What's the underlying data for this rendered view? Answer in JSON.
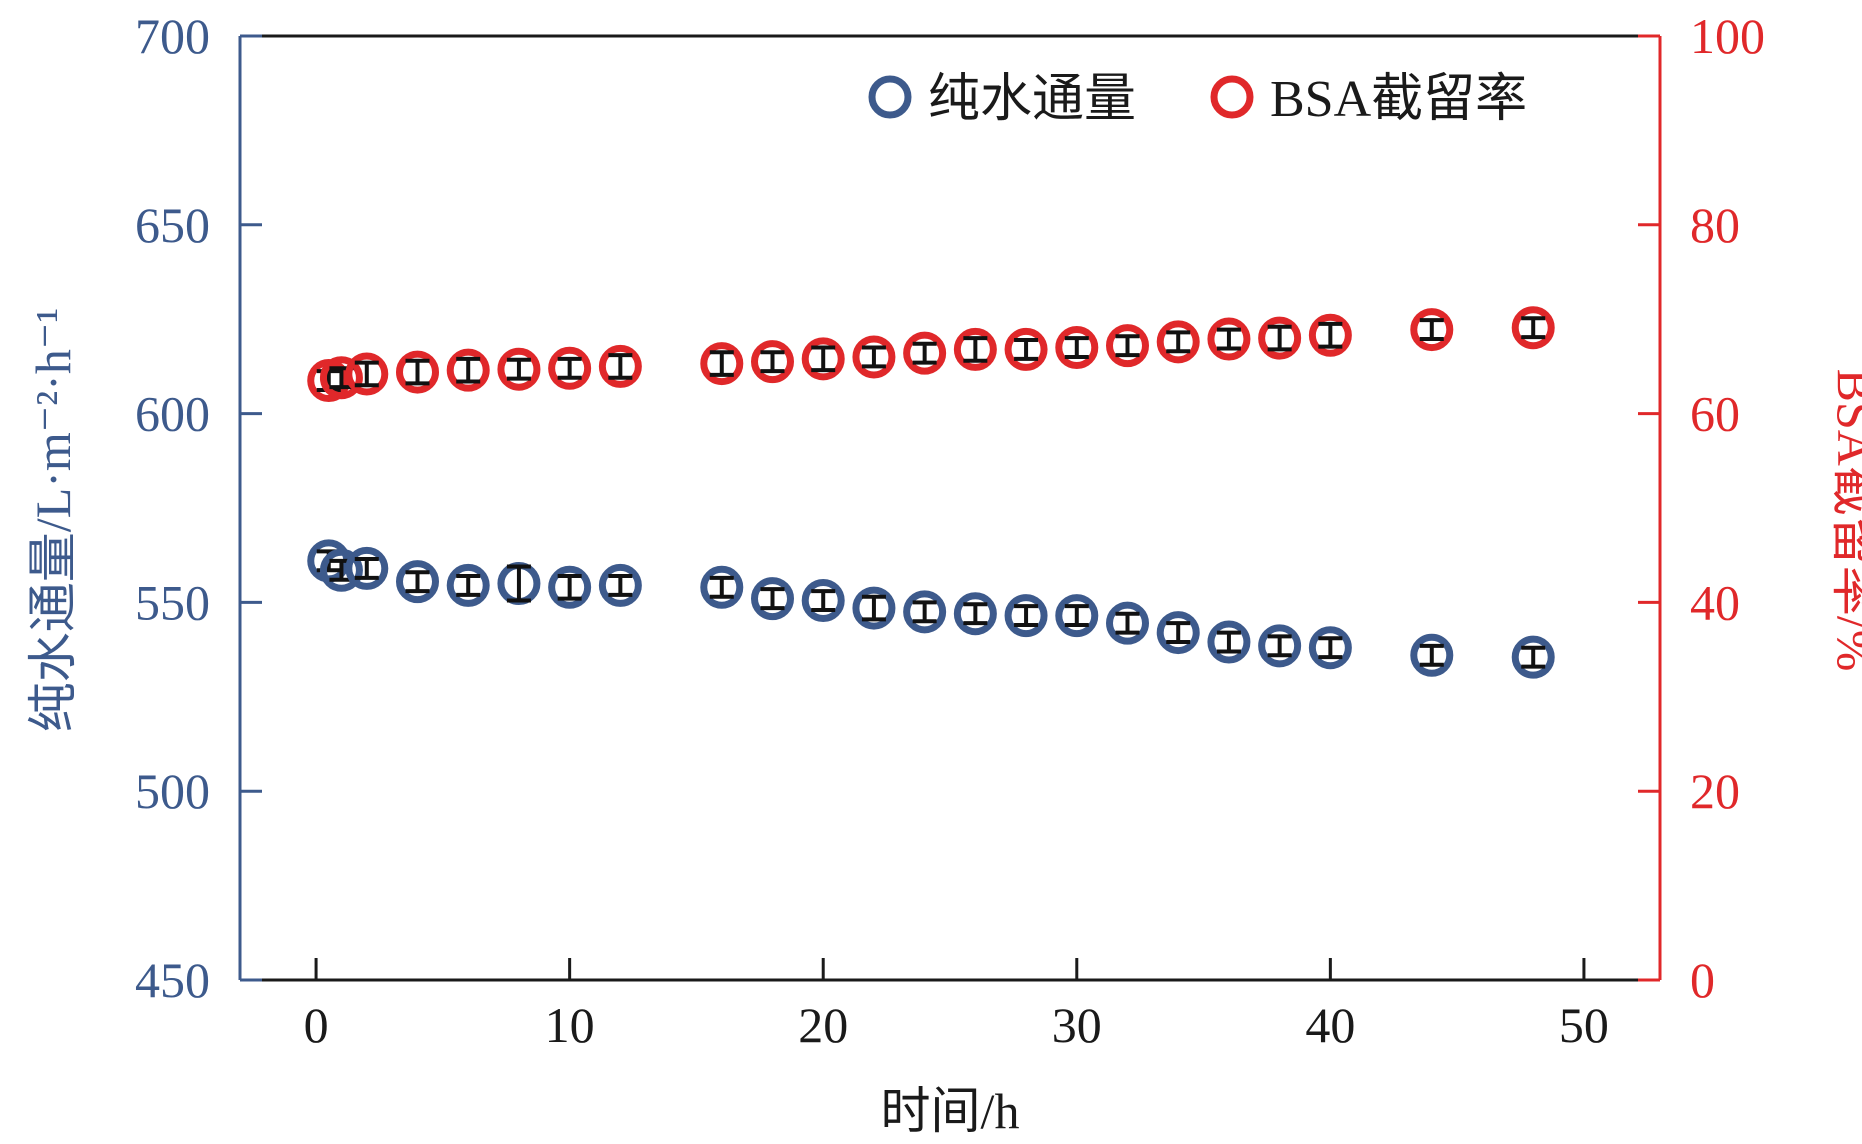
{
  "colors": {
    "flux": "#3d5a8c",
    "rejection": "#e0282a",
    "axis": "#1a1a1a",
    "errorbar": "#111111"
  },
  "chart_data": {
    "type": "scatter",
    "xlabel": "时间/h",
    "ylabel_left": "纯水通量/L·m⁻²·h⁻¹",
    "ylabel_right": "BSA截留率/%",
    "xlim": [
      -3,
      53
    ],
    "xticks": [
      0,
      10,
      20,
      30,
      40,
      50
    ],
    "ylim_left": [
      450,
      700
    ],
    "yticks_left": [
      450,
      500,
      550,
      600,
      650,
      700
    ],
    "ylim_right": [
      0,
      100
    ],
    "yticks_right": [
      0,
      20,
      40,
      60,
      80,
      100
    ],
    "legend_position": "top-right",
    "grid": false,
    "series": [
      {
        "name": "纯水通量",
        "axis": "left",
        "x": [
          0.5,
          1,
          2,
          4,
          6,
          8,
          10,
          12,
          16,
          18,
          20,
          22,
          24,
          26,
          28,
          30,
          32,
          34,
          36,
          38,
          40,
          44,
          48
        ],
        "y": [
          561,
          558.5,
          559,
          555.5,
          554.5,
          555,
          554,
          554.5,
          554,
          551,
          550.5,
          548.5,
          547.5,
          547,
          546.5,
          546.5,
          544.5,
          542,
          539.5,
          538.5,
          538,
          536,
          535.5
        ],
        "err": [
          2.5,
          2.5,
          2.5,
          2.5,
          2.5,
          4.5,
          3,
          2.5,
          2.5,
          2.5,
          2.5,
          3,
          2.5,
          2.5,
          2.5,
          2.5,
          2.5,
          2.5,
          2.5,
          2.5,
          2.5,
          2.5,
          2.5
        ]
      },
      {
        "name": "BSA截留率",
        "axis": "right",
        "x": [
          0.5,
          1,
          2,
          4,
          6,
          8,
          10,
          12,
          16,
          18,
          20,
          22,
          24,
          26,
          28,
          30,
          32,
          34,
          36,
          38,
          40,
          44,
          48
        ],
        "y": [
          63.5,
          63.8,
          64.2,
          64.4,
          64.6,
          64.7,
          64.8,
          65.0,
          65.3,
          65.5,
          65.8,
          66.0,
          66.4,
          66.8,
          66.8,
          67.0,
          67.2,
          67.6,
          67.9,
          68.0,
          68.3,
          68.9,
          69.1
        ],
        "err": [
          1.0,
          1.0,
          1.2,
          1.2,
          1.2,
          1.0,
          1.0,
          1.2,
          1.2,
          1.0,
          1.2,
          1.0,
          1.0,
          1.2,
          1.0,
          1.0,
          1.0,
          1.0,
          1.0,
          1.2,
          1.2,
          1.0,
          1.0
        ]
      }
    ]
  }
}
